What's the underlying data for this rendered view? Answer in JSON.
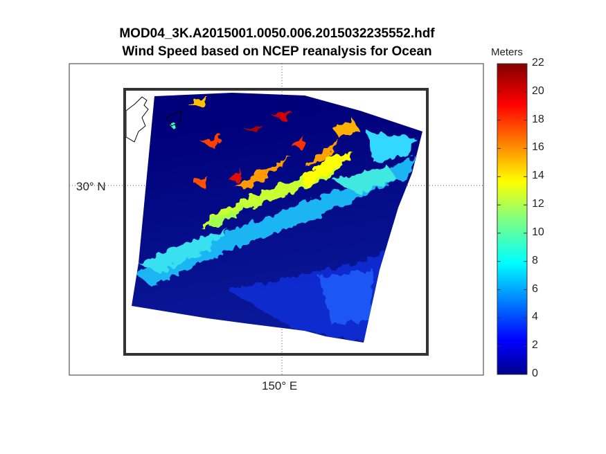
{
  "title_line1": "MOD04_3K.A2015001.0050.006.2015032235552.hdf",
  "title_line2": "Wind Speed based on NCEP reanalysis for Ocean",
  "lat_label": "30° N",
  "lon_label": "150° E",
  "colorbar": {
    "units": "Meters",
    "min": 0,
    "max": 22,
    "ticks": [
      "0",
      "2",
      "4",
      "6",
      "8",
      "10",
      "12",
      "14",
      "16",
      "18",
      "20",
      "22"
    ],
    "colormap": "jet"
  }
}
